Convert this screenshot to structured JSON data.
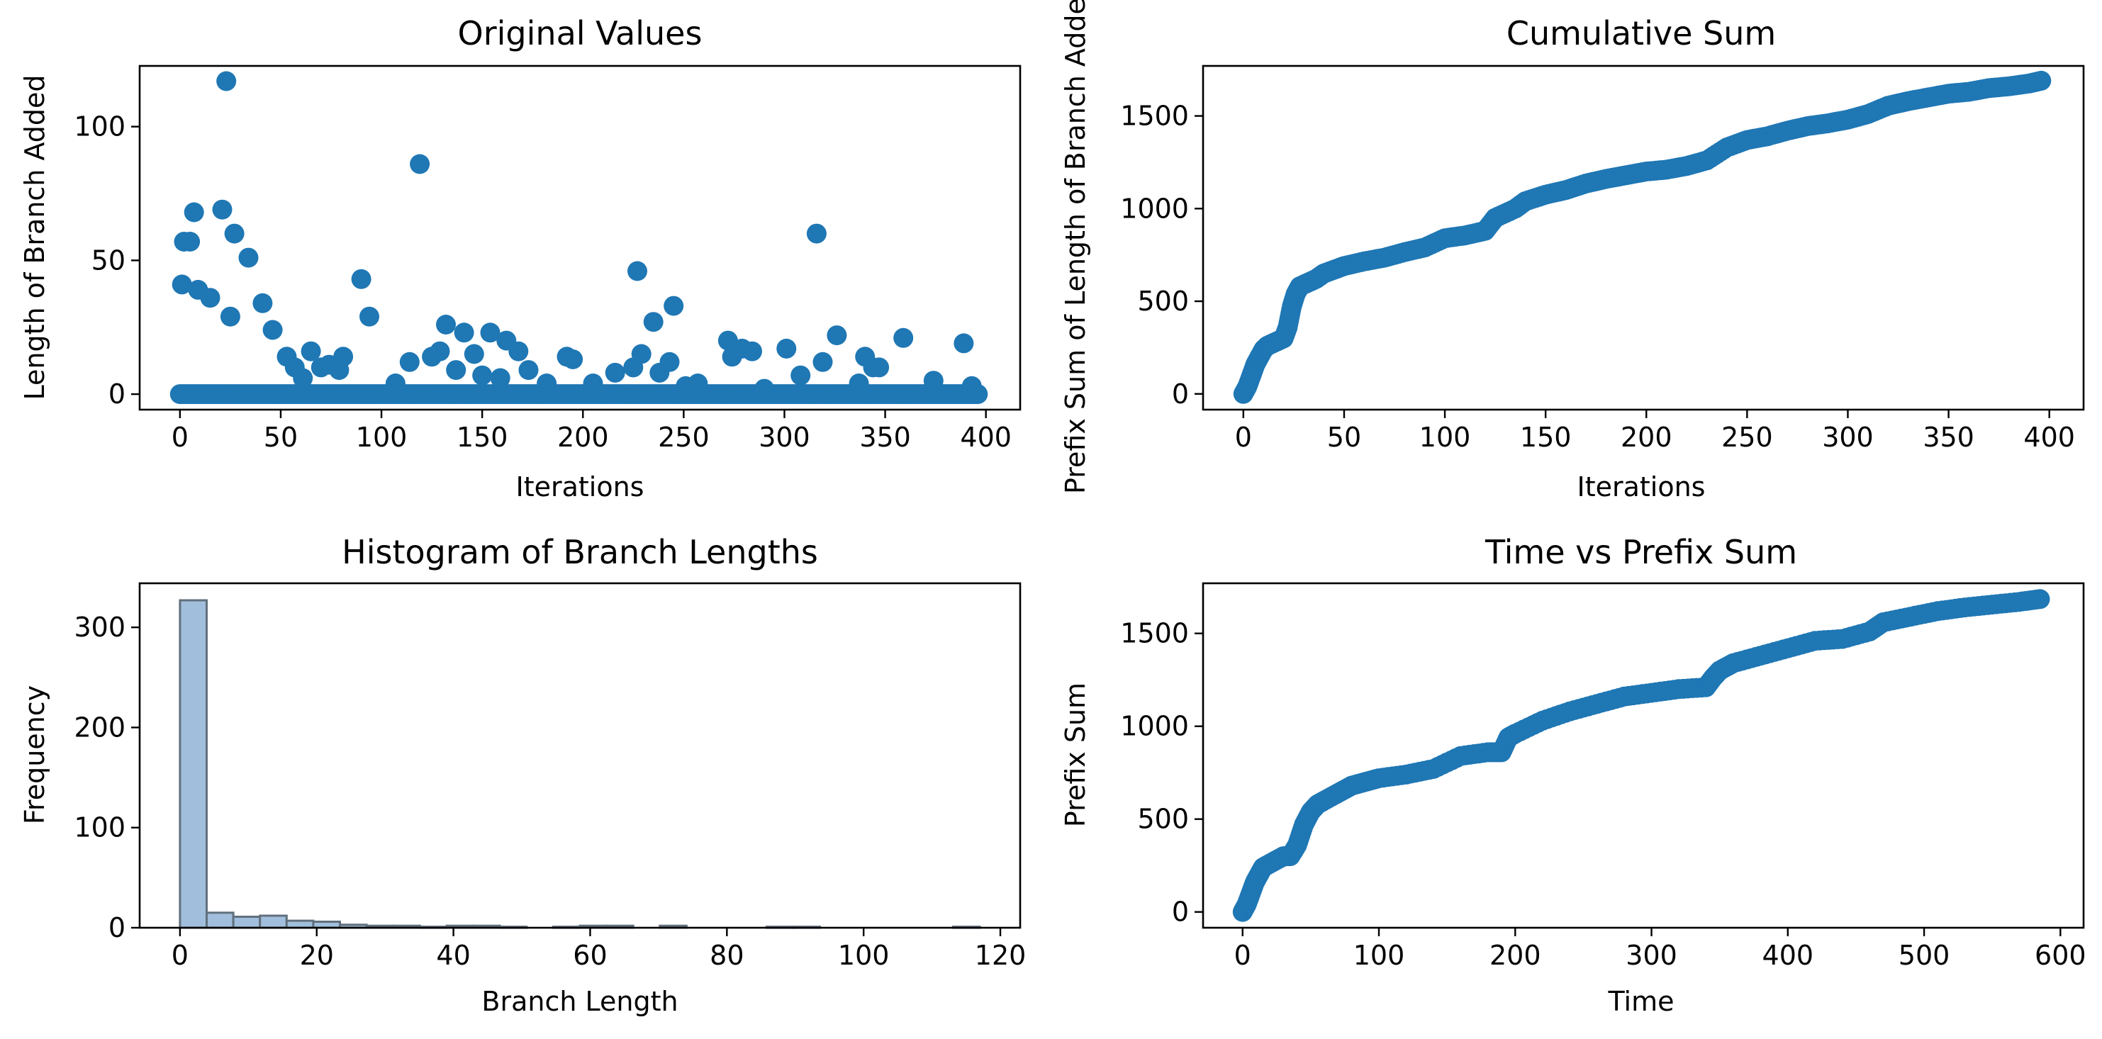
{
  "colors": {
    "points": "#1f77b4",
    "hist_fill": "#a1bfdc",
    "hist_edge": "#61707d",
    "axes": "#000000"
  },
  "chart_data": [
    {
      "type": "scatter",
      "title": "Original Values",
      "xlabel": "Iterations",
      "ylabel": "Length of Branch Added",
      "xlim": [
        -20,
        417
      ],
      "ylim": [
        -5.8,
        122.7
      ],
      "xticks": [
        0,
        50,
        100,
        150,
        200,
        250,
        300,
        350,
        400
      ],
      "yticks": [
        0,
        50,
        100
      ],
      "grid": false,
      "baseline": {
        "y": 0,
        "x_range": [
          0,
          396
        ]
      },
      "points": [
        [
          1,
          41
        ],
        [
          2,
          57
        ],
        [
          5,
          57
        ],
        [
          7,
          68
        ],
        [
          9,
          39
        ],
        [
          15,
          36
        ],
        [
          21,
          69
        ],
        [
          23,
          117
        ],
        [
          25,
          29
        ],
        [
          27,
          60
        ],
        [
          34,
          51
        ],
        [
          41,
          34
        ],
        [
          46,
          24
        ],
        [
          53,
          14
        ],
        [
          57,
          10
        ],
        [
          61,
          6
        ],
        [
          65,
          16
        ],
        [
          70,
          10
        ],
        [
          74,
          11
        ],
        [
          79,
          9
        ],
        [
          81,
          14
        ],
        [
          90,
          43
        ],
        [
          94,
          29
        ],
        [
          107,
          4
        ],
        [
          114,
          12
        ],
        [
          119,
          86
        ],
        [
          125,
          14
        ],
        [
          129,
          16
        ],
        [
          132,
          26
        ],
        [
          137,
          9
        ],
        [
          141,
          23
        ],
        [
          146,
          15
        ],
        [
          150,
          7
        ],
        [
          154,
          23
        ],
        [
          159,
          6
        ],
        [
          162,
          20
        ],
        [
          168,
          16
        ],
        [
          173,
          9
        ],
        [
          182,
          4
        ],
        [
          192,
          14
        ],
        [
          195,
          13
        ],
        [
          205,
          4
        ],
        [
          216,
          8
        ],
        [
          225,
          10
        ],
        [
          227,
          46
        ],
        [
          229,
          15
        ],
        [
          235,
          27
        ],
        [
          238,
          8
        ],
        [
          243,
          12
        ],
        [
          245,
          33
        ],
        [
          251,
          3
        ],
        [
          257,
          4
        ],
        [
          272,
          20
        ],
        [
          274,
          14
        ],
        [
          279,
          17
        ],
        [
          284,
          16
        ],
        [
          290,
          2
        ],
        [
          301,
          17
        ],
        [
          308,
          7
        ],
        [
          316,
          60
        ],
        [
          319,
          12
        ],
        [
          326,
          22
        ],
        [
          337,
          4
        ],
        [
          340,
          14
        ],
        [
          344,
          10
        ],
        [
          347,
          10
        ],
        [
          359,
          21
        ],
        [
          374,
          5
        ],
        [
          389,
          19
        ],
        [
          393,
          3
        ]
      ]
    },
    {
      "type": "scatter",
      "title": "Cumulative Sum",
      "xlabel": "Iterations",
      "ylabel": "Prefix Sum of Length of Branch Added",
      "xlim": [
        -20,
        417
      ],
      "ylim": [
        -85,
        1770
      ],
      "xticks": [
        0,
        50,
        100,
        150,
        200,
        250,
        300,
        350,
        400
      ],
      "yticks": [
        0,
        500,
        1000,
        1500
      ],
      "grid": false,
      "x": [
        0,
        2,
        4,
        6,
        8,
        10,
        12,
        14,
        16,
        18,
        20,
        22,
        24,
        26,
        28,
        32,
        36,
        40,
        45,
        50,
        60,
        70,
        80,
        90,
        100,
        110,
        120,
        125,
        135,
        140,
        150,
        160,
        170,
        180,
        190,
        200,
        210,
        220,
        230,
        240,
        250,
        260,
        270,
        280,
        290,
        300,
        310,
        320,
        330,
        340,
        350,
        360,
        370,
        380,
        390,
        396
      ],
      "y": [
        0,
        40,
        100,
        160,
        200,
        240,
        260,
        270,
        280,
        290,
        300,
        360,
        470,
        540,
        580,
        600,
        620,
        650,
        670,
        690,
        715,
        735,
        765,
        790,
        840,
        855,
        880,
        950,
        1000,
        1040,
        1075,
        1100,
        1135,
        1160,
        1180,
        1200,
        1210,
        1230,
        1260,
        1330,
        1370,
        1390,
        1420,
        1445,
        1460,
        1480,
        1510,
        1555,
        1580,
        1600,
        1620,
        1630,
        1650,
        1660,
        1675,
        1690
      ]
    },
    {
      "type": "bar",
      "title": "Histogram of Branch Lengths",
      "xlabel": "Branch Length",
      "ylabel": "Frequency",
      "xlim": [
        -5.9,
        122.9
      ],
      "ylim": [
        0,
        344
      ],
      "xticks": [
        0,
        20,
        40,
        60,
        80,
        100,
        120
      ],
      "yticks": [
        0,
        100,
        200,
        300
      ],
      "grid": false,
      "bin_edges": [
        0,
        3.9,
        7.8,
        11.7,
        15.6,
        19.5,
        23.4,
        27.3,
        31.2,
        35.1,
        39.0,
        42.9,
        46.8,
        50.7,
        54.6,
        58.5,
        62.4,
        66.3,
        70.2,
        74.1,
        78.0,
        81.9,
        85.8,
        89.7,
        93.6,
        97.5,
        101.4,
        105.3,
        109.2,
        113.1,
        117.0
      ],
      "counts": [
        327,
        15,
        11,
        12,
        7,
        6,
        3,
        2,
        2,
        1,
        2,
        2,
        1,
        0,
        1,
        2,
        2,
        0,
        2,
        0,
        0,
        0,
        1,
        1,
        0,
        0,
        0,
        0,
        0,
        1
      ]
    },
    {
      "type": "scatter",
      "title": "Time vs Prefix Sum",
      "xlabel": "Time",
      "ylabel": "Prefix Sum",
      "xlim": [
        -29,
        617
      ],
      "ylim": [
        -85,
        1770
      ],
      "xticks": [
        0,
        100,
        200,
        300,
        400,
        500,
        600
      ],
      "yticks": [
        0,
        500,
        1000,
        1500
      ],
      "grid": false,
      "x": [
        0,
        3,
        6,
        9,
        12,
        15,
        20,
        25,
        30,
        35,
        40,
        45,
        50,
        55,
        60,
        70,
        80,
        90,
        100,
        120,
        140,
        160,
        180,
        190,
        195,
        200,
        220,
        240,
        260,
        280,
        300,
        320,
        340,
        345,
        350,
        360,
        380,
        400,
        420,
        440,
        460,
        470,
        490,
        510,
        530,
        550,
        570,
        585
      ],
      "y": [
        0,
        40,
        100,
        160,
        200,
        240,
        260,
        280,
        300,
        300,
        360,
        470,
        540,
        580,
        600,
        640,
        680,
        700,
        720,
        740,
        770,
        840,
        860,
        860,
        940,
        960,
        1030,
        1080,
        1120,
        1160,
        1180,
        1200,
        1210,
        1260,
        1300,
        1340,
        1380,
        1420,
        1460,
        1470,
        1510,
        1560,
        1590,
        1620,
        1640,
        1655,
        1670,
        1685
      ]
    }
  ]
}
